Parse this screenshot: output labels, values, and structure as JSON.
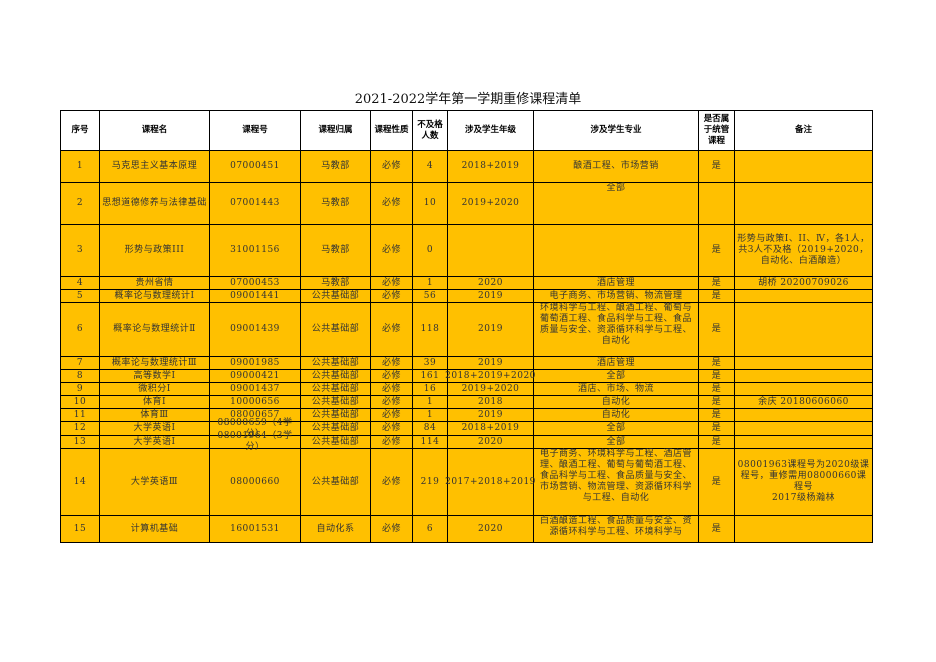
{
  "title": "2021-2022学年第一学期重修课程清单",
  "colors": {
    "row_fill": "#FFC000",
    "header_fill": "#FFFFFF",
    "border": "#000000"
  },
  "headers": [
    "序号",
    "课程名",
    "课程号",
    "课程归属",
    "课程性质",
    "不及格人数",
    "涉及学生年级",
    "涉及学生专业",
    "是否属于统管课程",
    "备注"
  ],
  "rows": [
    [
      "1",
      "马克思主义基本原理",
      "07000451",
      "马教部",
      "必修",
      "4",
      "2018+2019",
      "酿酒工程、市场营销",
      "是",
      ""
    ],
    [
      "2",
      "思想道德修养与法律基础",
      "07001443",
      "马教部",
      "必修",
      "10",
      "2019+2020",
      "全部",
      "",
      ""
    ],
    [
      "3",
      "形势与政策III",
      "31001156",
      "马教部",
      "必修",
      "0",
      "",
      "",
      "是",
      "形势与政策I、II、Ⅳ，各1人，共3人不及格（2019+2020，自动化、白酒酿造）"
    ],
    [
      "4",
      "贵州省情",
      "07000453",
      "马教部",
      "必修",
      "1",
      "2020",
      "酒店管理",
      "是",
      "胡桥 20200709026"
    ],
    [
      "5",
      "概率论与数理统计Ⅰ",
      "09001441",
      "公共基础部",
      "必修",
      "56",
      "2019",
      "电子商务、市场营销、物流管理",
      "是",
      ""
    ],
    [
      "6",
      "概率论与数理统计Ⅱ",
      "09001439",
      "公共基础部",
      "必修",
      "118",
      "2019",
      "环境科学与工程、酿酒工程、葡萄与葡萄酒工程、食品科学与工程、食品质量与安全、资源循环科学与工程、自动化",
      "是",
      ""
    ],
    [
      "7",
      "概率论与数理统计Ⅲ",
      "09001985",
      "公共基础部",
      "必修",
      "39",
      "2019",
      "酒店管理",
      "是",
      ""
    ],
    [
      "8",
      "高等数学Ⅰ",
      "09000421",
      "公共基础部",
      "必修",
      "161",
      "2018+2019+2020",
      "全部",
      "是",
      ""
    ],
    [
      "9",
      "微积分I",
      "09001437",
      "公共基础部",
      "必修",
      "16",
      "2019+2020",
      "酒店、市场、物流",
      "是",
      ""
    ],
    [
      "10",
      "体育Ⅰ",
      "10000656",
      "公共基础部",
      "必修",
      "1",
      "2018",
      "自动化",
      "是",
      "余庆 20180606060"
    ],
    [
      "11",
      "体育Ⅲ",
      "08000657",
      "公共基础部",
      "必修",
      "1",
      "2019",
      "自动化",
      "是",
      ""
    ],
    [
      "12",
      "大学英语Ⅰ",
      "08000659（4学分）",
      "公共基础部",
      "必修",
      "84",
      "2018+2019",
      "全部",
      "是",
      ""
    ],
    [
      "13",
      "大学英语Ⅰ",
      "08001964（3学分）",
      "公共基础部",
      "必修",
      "114",
      "2020",
      "全部",
      "是",
      ""
    ],
    [
      "14",
      "大学英语Ⅲ",
      "08000660",
      "公共基础部",
      "必修",
      "219",
      "2017+2018+2019",
      "电子商务、环境科学与工程、酒店管理、酿酒工程、葡萄与葡萄酒工程、食品科学与工程、食品质量与安全、市场营销、物流管理、资源循环科学与工程、自动化",
      "是",
      "08001963课程号为2020级课程号，重修需用08000660课程号\n2017级杨瀚林"
    ],
    [
      "15",
      "计算机基础",
      "16001531",
      "自动化系",
      "必修",
      "6",
      "2020",
      "白酒酿造工程、食品质量与安全、资源循环科学与工程、环境科学与",
      "是",
      ""
    ]
  ]
}
